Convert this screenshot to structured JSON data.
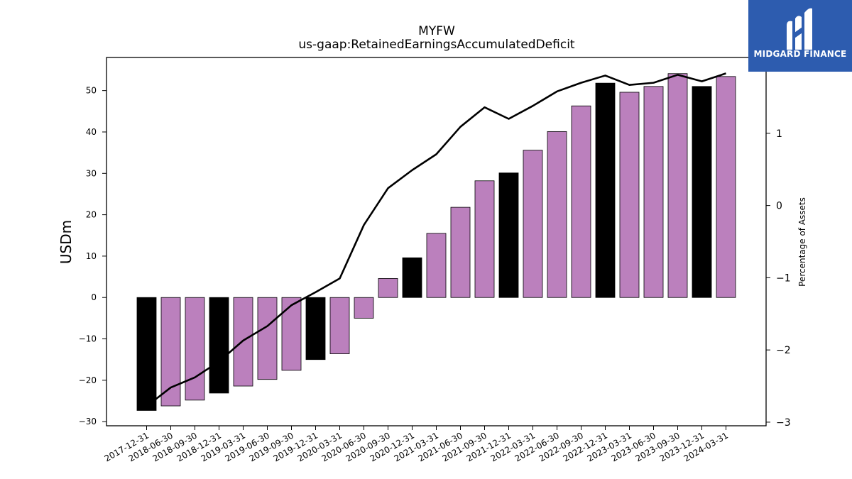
{
  "logo": {
    "text": "MIDGARD FINANCE",
    "color": "#2d5caf"
  },
  "chart_data": {
    "type": "bar",
    "title": "MYFW",
    "subtitle": "us-gaap:RetainedEarningsAccumulatedDeficit",
    "ylabel": "USDm",
    "y2label": "Percentage of Assets",
    "ylim": [
      -31,
      58
    ],
    "y2lim": [
      -3.05,
      2.05
    ],
    "yticks": [
      -30,
      -20,
      -10,
      0,
      10,
      20,
      30,
      40,
      50
    ],
    "y2ticks": [
      -3,
      -2,
      -1,
      0,
      1
    ],
    "categories": [
      "2017-12-31",
      "2018-06-30",
      "2018-09-30",
      "2018-12-31",
      "2019-03-31",
      "2019-06-30",
      "2019-09-30",
      "2019-12-31",
      "2020-03-31",
      "2020-06-30",
      "2020-09-30",
      "2020-12-31",
      "2021-03-31",
      "2021-06-30",
      "2021-09-30",
      "2021-12-31",
      "2022-03-31",
      "2022-06-30",
      "2022-09-30",
      "2022-12-31",
      "2023-03-31",
      "2023-06-30",
      "2023-09-30",
      "2023-12-31",
      "2024-03-31"
    ],
    "series": [
      {
        "type": "bar",
        "values": [
          -27.3,
          -26.2,
          -24.8,
          -23.1,
          -21.4,
          -19.8,
          -17.6,
          -15.0,
          -13.6,
          -5.0,
          4.6,
          9.6,
          15.5,
          21.8,
          28.2,
          30.1,
          35.6,
          40.1,
          46.3,
          51.8,
          49.6,
          51.0,
          54.1,
          51.0,
          53.4
        ]
      },
      {
        "type": "line",
        "axis": "right",
        "values": [
          -2.78,
          -2.52,
          -2.38,
          -2.16,
          -1.87,
          -1.67,
          -1.38,
          -1.2,
          -1.01,
          -0.27,
          0.24,
          0.49,
          0.71,
          1.09,
          1.36,
          1.2,
          1.38,
          1.58,
          1.7,
          1.8,
          1.67,
          1.7,
          1.81,
          1.72,
          1.83
        ]
      }
    ],
    "bar_colors": {
      "annual": "#000000",
      "quarterly": "#bb80bd"
    },
    "annual_flags": [
      1,
      0,
      0,
      1,
      0,
      0,
      0,
      1,
      0,
      0,
      0,
      1,
      0,
      0,
      0,
      1,
      0,
      0,
      0,
      1,
      0,
      0,
      0,
      1,
      0
    ],
    "line_color": "#000000",
    "grid": false
  }
}
